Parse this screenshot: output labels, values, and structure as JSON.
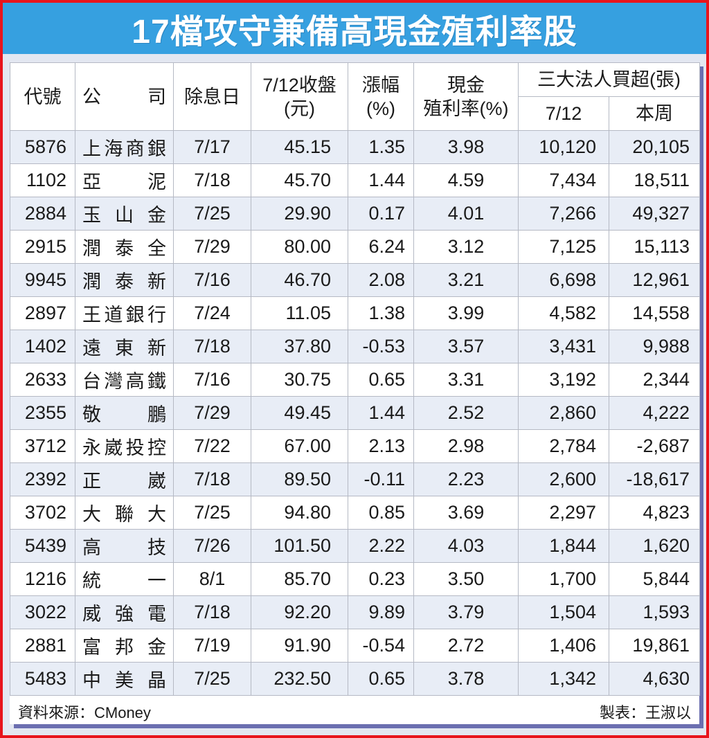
{
  "title": "17檔攻守兼備高現金殖利率股",
  "colors": {
    "border": "#e8141c",
    "title_bg": "#36a0e0",
    "row_alt": "#e8edf6",
    "shadow": "#6b6fb0"
  },
  "headers": {
    "code": "代號",
    "company": "公　司",
    "ex_date": "除息日",
    "close": [
      "7/12收盤",
      "(元)"
    ],
    "change": [
      "漲幅",
      "(%)"
    ],
    "yield": [
      "現金",
      "殖利率(%)"
    ],
    "institutional": "三大法人買超(張)",
    "inst_day": "7/12",
    "inst_week": "本周"
  },
  "rows": [
    {
      "code": "5876",
      "name": "上海商銀",
      "ex_date": "7/17",
      "close": "45.15",
      "change": "1.35",
      "yield": "3.98",
      "inst_day": "10,120",
      "inst_week": "20,105"
    },
    {
      "code": "1102",
      "name": "亞泥",
      "ex_date": "7/18",
      "close": "45.70",
      "change": "1.44",
      "yield": "4.59",
      "inst_day": "7,434",
      "inst_week": "18,511"
    },
    {
      "code": "2884",
      "name": "玉山金",
      "ex_date": "7/25",
      "close": "29.90",
      "change": "0.17",
      "yield": "4.01",
      "inst_day": "7,266",
      "inst_week": "49,327"
    },
    {
      "code": "2915",
      "name": "潤泰全",
      "ex_date": "7/29",
      "close": "80.00",
      "change": "6.24",
      "yield": "3.12",
      "inst_day": "7,125",
      "inst_week": "15,113"
    },
    {
      "code": "9945",
      "name": "潤泰新",
      "ex_date": "7/16",
      "close": "46.70",
      "change": "2.08",
      "yield": "3.21",
      "inst_day": "6,698",
      "inst_week": "12,961"
    },
    {
      "code": "2897",
      "name": "王道銀行",
      "ex_date": "7/24",
      "close": "11.05",
      "change": "1.38",
      "yield": "3.99",
      "inst_day": "4,582",
      "inst_week": "14,558"
    },
    {
      "code": "1402",
      "name": "遠東新",
      "ex_date": "7/18",
      "close": "37.80",
      "change": "-0.53",
      "yield": "3.57",
      "inst_day": "3,431",
      "inst_week": "9,988"
    },
    {
      "code": "2633",
      "name": "台灣高鐵",
      "ex_date": "7/16",
      "close": "30.75",
      "change": "0.65",
      "yield": "3.31",
      "inst_day": "3,192",
      "inst_week": "2,344"
    },
    {
      "code": "2355",
      "name": "敬鵬",
      "ex_date": "7/29",
      "close": "49.45",
      "change": "1.44",
      "yield": "2.52",
      "inst_day": "2,860",
      "inst_week": "4,222"
    },
    {
      "code": "3712",
      "name": "永崴投控",
      "ex_date": "7/22",
      "close": "67.00",
      "change": "2.13",
      "yield": "2.98",
      "inst_day": "2,784",
      "inst_week": "-2,687"
    },
    {
      "code": "2392",
      "name": "正崴",
      "ex_date": "7/18",
      "close": "89.50",
      "change": "-0.11",
      "yield": "2.23",
      "inst_day": "2,600",
      "inst_week": "-18,617"
    },
    {
      "code": "3702",
      "name": "大聯大",
      "ex_date": "7/25",
      "close": "94.80",
      "change": "0.85",
      "yield": "3.69",
      "inst_day": "2,297",
      "inst_week": "4,823"
    },
    {
      "code": "5439",
      "name": "高技",
      "ex_date": "7/26",
      "close": "101.50",
      "change": "2.22",
      "yield": "4.03",
      "inst_day": "1,844",
      "inst_week": "1,620"
    },
    {
      "code": "1216",
      "name": "統一",
      "ex_date": "8/1",
      "close": "85.70",
      "change": "0.23",
      "yield": "3.50",
      "inst_day": "1,700",
      "inst_week": "5,844"
    },
    {
      "code": "3022",
      "name": "威強電",
      "ex_date": "7/18",
      "close": "92.20",
      "change": "9.89",
      "yield": "3.79",
      "inst_day": "1,504",
      "inst_week": "1,593"
    },
    {
      "code": "2881",
      "name": "富邦金",
      "ex_date": "7/19",
      "close": "91.90",
      "change": "-0.54",
      "yield": "2.72",
      "inst_day": "1,406",
      "inst_week": "19,861"
    },
    {
      "code": "5483",
      "name": "中美晶",
      "ex_date": "7/25",
      "close": "232.50",
      "change": "0.65",
      "yield": "3.78",
      "inst_day": "1,342",
      "inst_week": "4,630"
    }
  ],
  "footer": {
    "source": "資料來源：CMoney",
    "credit": "製表：王淑以"
  }
}
